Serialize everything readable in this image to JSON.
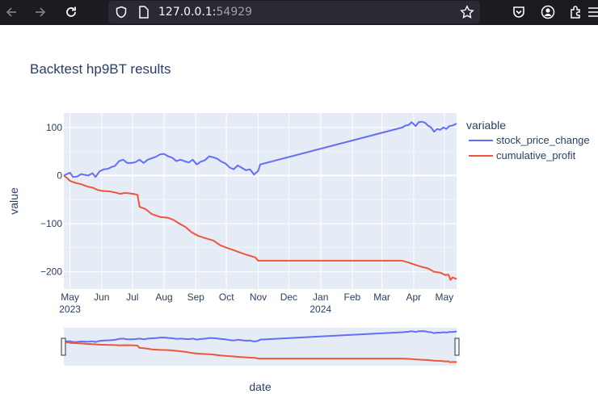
{
  "browser": {
    "url_host": "127.0.0.1:",
    "url_port": "54929",
    "icons": [
      "back-arrow-icon",
      "forward-arrow-icon",
      "reload-icon",
      "shield-icon",
      "page-icon",
      "star-icon",
      "pocket-icon",
      "account-icon",
      "extensions-icon",
      "menu-icon"
    ]
  },
  "page": {
    "title": "Backtest hp9BT results"
  },
  "legend": {
    "title": "variable",
    "items": [
      {
        "label": "stock_price_change",
        "color": "#636efa"
      },
      {
        "label": "cumulative_profit",
        "color": "#ef553b"
      }
    ]
  },
  "axes": {
    "xlabel": "date",
    "ylabel": "value",
    "yticks": [
      "100",
      "0",
      "−100",
      "−200"
    ],
    "xticks": [
      "May",
      "Jun",
      "Jul",
      "Aug",
      "Sep",
      "Oct",
      "Nov",
      "Dec",
      "Jan",
      "Feb",
      "Mar",
      "Apr",
      "May"
    ],
    "year_labels": [
      "2023",
      "2024"
    ]
  },
  "chart_data": {
    "type": "line",
    "x_type": "date",
    "x_range": [
      "2023-04-25",
      "2024-05-13"
    ],
    "ylim": [
      -236,
      130
    ],
    "grid": true,
    "legend_position": "right",
    "rangeslider": true,
    "series": [
      {
        "name": "stock_price_change",
        "color": "#636efa",
        "points": [
          [
            "2023-04-25",
            0
          ],
          [
            "2023-04-28",
            3
          ],
          [
            "2023-05-01",
            6
          ],
          [
            "2023-05-04",
            -3
          ],
          [
            "2023-05-08",
            -2
          ],
          [
            "2023-05-12",
            3
          ],
          [
            "2023-05-16",
            1
          ],
          [
            "2023-05-19",
            0
          ],
          [
            "2023-05-23",
            5
          ],
          [
            "2023-05-26",
            -3
          ],
          [
            "2023-05-30",
            9
          ],
          [
            "2023-06-03",
            13
          ],
          [
            "2023-06-07",
            14
          ],
          [
            "2023-06-11",
            18
          ],
          [
            "2023-06-14",
            20
          ],
          [
            "2023-06-18",
            30
          ],
          [
            "2023-06-22",
            33
          ],
          [
            "2023-06-26",
            26
          ],
          [
            "2023-06-30",
            26
          ],
          [
            "2023-07-04",
            28
          ],
          [
            "2023-07-08",
            33
          ],
          [
            "2023-07-12",
            26
          ],
          [
            "2023-07-16",
            33
          ],
          [
            "2023-07-20",
            36
          ],
          [
            "2023-07-24",
            39
          ],
          [
            "2023-07-28",
            44
          ],
          [
            "2023-08-01",
            45
          ],
          [
            "2023-08-05",
            40
          ],
          [
            "2023-08-09",
            37
          ],
          [
            "2023-08-13",
            30
          ],
          [
            "2023-08-17",
            33
          ],
          [
            "2023-08-21",
            30
          ],
          [
            "2023-08-25",
            27
          ],
          [
            "2023-08-29",
            33
          ],
          [
            "2023-09-02",
            23
          ],
          [
            "2023-09-06",
            29
          ],
          [
            "2023-09-10",
            32
          ],
          [
            "2023-09-14",
            40
          ],
          [
            "2023-09-18",
            38
          ],
          [
            "2023-09-22",
            35
          ],
          [
            "2023-09-26",
            29
          ],
          [
            "2023-09-30",
            25
          ],
          [
            "2023-10-04",
            17
          ],
          [
            "2023-10-08",
            13
          ],
          [
            "2023-10-12",
            21
          ],
          [
            "2023-10-16",
            16
          ],
          [
            "2023-10-20",
            11
          ],
          [
            "2023-10-24",
            13
          ],
          [
            "2023-10-28",
            2
          ],
          [
            "2023-11-01",
            10
          ],
          [
            "2023-11-03",
            23
          ],
          [
            "2024-03-21",
            100
          ],
          [
            "2024-03-24",
            104
          ],
          [
            "2024-03-27",
            105
          ],
          [
            "2024-03-30",
            111
          ],
          [
            "2024-04-03",
            103
          ],
          [
            "2024-04-06",
            111
          ],
          [
            "2024-04-09",
            112
          ],
          [
            "2024-04-12",
            110
          ],
          [
            "2024-04-15",
            104
          ],
          [
            "2024-04-18",
            100
          ],
          [
            "2024-04-21",
            91
          ],
          [
            "2024-04-24",
            97
          ],
          [
            "2024-04-27",
            95
          ],
          [
            "2024-04-30",
            100
          ],
          [
            "2024-05-03",
            97
          ],
          [
            "2024-05-06",
            103
          ],
          [
            "2024-05-09",
            104
          ],
          [
            "2024-05-13",
            108
          ]
        ]
      },
      {
        "name": "cumulative_profit",
        "color": "#ef553b",
        "points": [
          [
            "2023-04-25",
            0
          ],
          [
            "2023-04-28",
            -5
          ],
          [
            "2023-05-01",
            -11
          ],
          [
            "2023-05-06",
            -15
          ],
          [
            "2023-05-12",
            -18
          ],
          [
            "2023-05-18",
            -23
          ],
          [
            "2023-05-23",
            -25
          ],
          [
            "2023-05-28",
            -30
          ],
          [
            "2023-06-02",
            -32
          ],
          [
            "2023-06-09",
            -33
          ],
          [
            "2023-06-14",
            -35
          ],
          [
            "2023-06-19",
            -38
          ],
          [
            "2023-06-24",
            -36
          ],
          [
            "2023-06-28",
            -37
          ],
          [
            "2023-07-02",
            -38
          ],
          [
            "2023-07-06",
            -40
          ],
          [
            "2023-07-08",
            -65
          ],
          [
            "2023-07-14",
            -70
          ],
          [
            "2023-07-20",
            -80
          ],
          [
            "2023-07-28",
            -86
          ],
          [
            "2023-08-05",
            -88
          ],
          [
            "2023-08-10",
            -92
          ],
          [
            "2023-08-16",
            -100
          ],
          [
            "2023-08-22",
            -107
          ],
          [
            "2023-08-28",
            -118
          ],
          [
            "2023-09-03",
            -125
          ],
          [
            "2023-09-10",
            -130
          ],
          [
            "2023-09-18",
            -135
          ],
          [
            "2023-09-25",
            -145
          ],
          [
            "2023-10-01",
            -150
          ],
          [
            "2023-10-08",
            -155
          ],
          [
            "2023-10-14",
            -160
          ],
          [
            "2023-10-21",
            -165
          ],
          [
            "2023-10-29",
            -170
          ],
          [
            "2023-11-01",
            -177
          ],
          [
            "2024-03-21",
            -177
          ],
          [
            "2024-03-27",
            -181
          ],
          [
            "2024-04-03",
            -186
          ],
          [
            "2024-04-09",
            -190
          ],
          [
            "2024-04-15",
            -193
          ],
          [
            "2024-04-21",
            -200
          ],
          [
            "2024-04-27",
            -202
          ],
          [
            "2024-05-02",
            -207
          ],
          [
            "2024-05-05",
            -206
          ],
          [
            "2024-05-07",
            -217
          ],
          [
            "2024-05-09",
            -212
          ],
          [
            "2024-05-13",
            -215
          ]
        ]
      }
    ]
  }
}
